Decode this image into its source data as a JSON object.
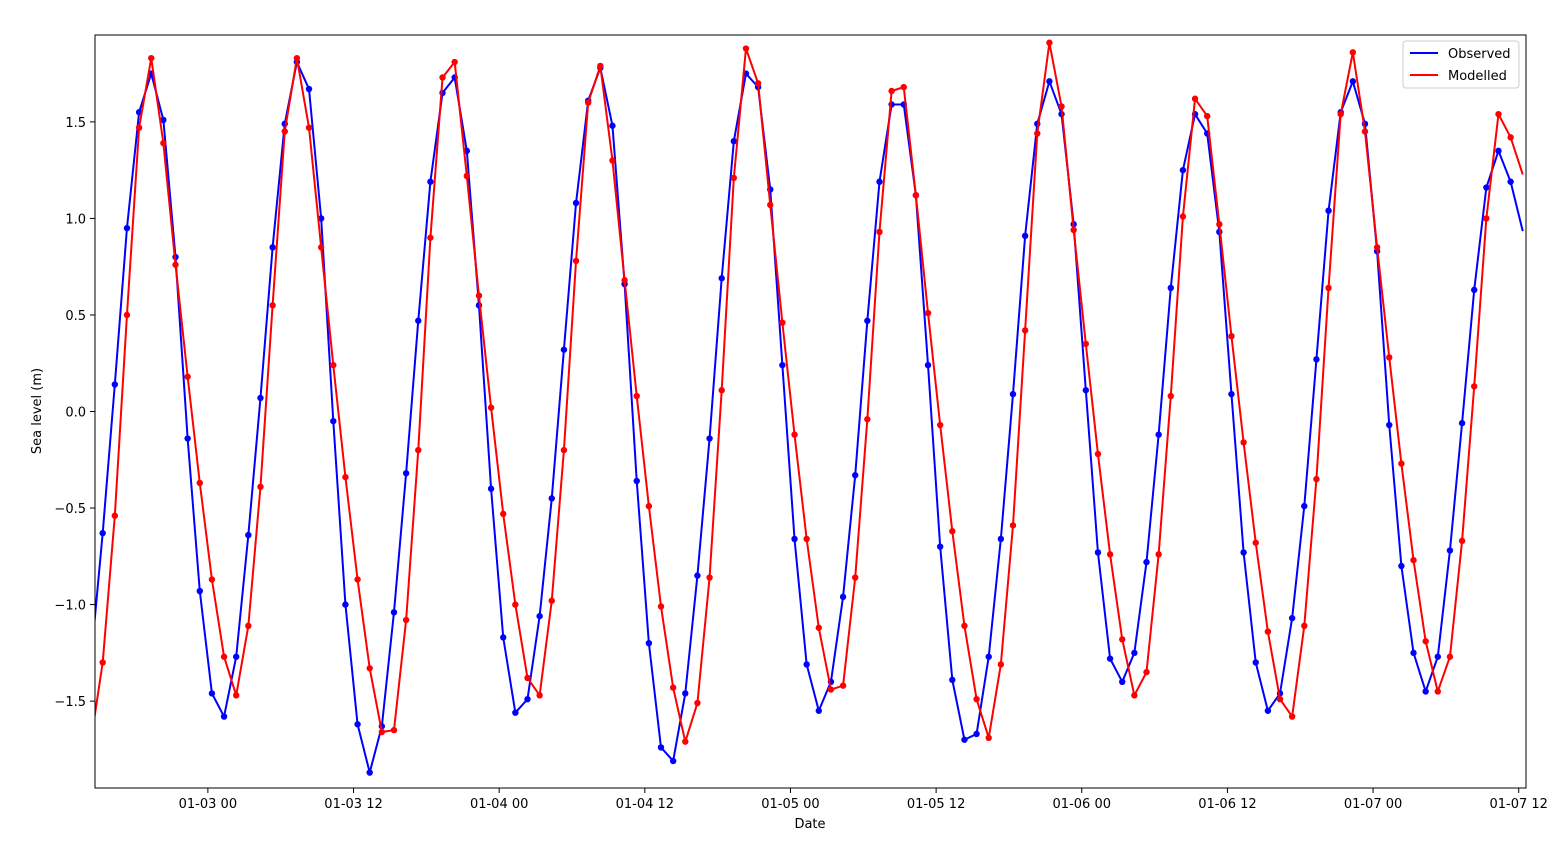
{
  "chart_data": {
    "type": "line",
    "title": "",
    "xlabel": "Date",
    "ylabel": "Sea level (m)",
    "x_start": "01-02 14:20",
    "x_step_hours": 1,
    "xlim_hours_from_jan3": [
      -9.3,
      108.6
    ],
    "ylim": [
      -1.95,
      1.95
    ],
    "x_ticks": [
      {
        "label": "01-03 00",
        "hour": 0
      },
      {
        "label": "01-03 12",
        "hour": 12
      },
      {
        "label": "01-04 00",
        "hour": 24
      },
      {
        "label": "01-04 12",
        "hour": 36
      },
      {
        "label": "01-05 00",
        "hour": 48
      },
      {
        "label": "01-05 12",
        "hour": 60
      },
      {
        "label": "01-06 00",
        "hour": 72
      },
      {
        "label": "01-06 12",
        "hour": 84
      },
      {
        "label": "01-07 00",
        "hour": 96
      },
      {
        "label": "01-07 12",
        "hour": 108
      }
    ],
    "y_ticks": [
      {
        "label": "−1.5",
        "value": -1.5
      },
      {
        "label": "−1.0",
        "value": -1.0
      },
      {
        "label": "−0.5",
        "value": -0.5
      },
      {
        "label": "0.0",
        "value": 0.0
      },
      {
        "label": "0.5",
        "value": 0.5
      },
      {
        "label": "1.0",
        "value": 1.0
      },
      {
        "label": "1.5",
        "value": 1.5
      }
    ],
    "legend_position": "top-right",
    "grid": false,
    "series": [
      {
        "name": "Observed",
        "color": "#0000ff",
        "values": [
          -1.31,
          -0.63,
          0.14,
          0.95,
          1.55,
          1.75,
          1.51,
          0.8,
          -0.14,
          -0.93,
          -1.46,
          -1.58,
          -1.27,
          -0.64,
          0.07,
          0.85,
          1.49,
          1.81,
          1.67,
          1.0,
          -0.05,
          -1.0,
          -1.62,
          -1.87,
          -1.63,
          -1.04,
          -0.32,
          0.47,
          1.19,
          1.65,
          1.73,
          1.35,
          0.55,
          -0.4,
          -1.17,
          -1.56,
          -1.49,
          -1.06,
          -0.45,
          0.32,
          1.08,
          1.61,
          1.78,
          1.48,
          0.66,
          -0.36,
          -1.2,
          -1.74,
          -1.81,
          -1.46,
          -0.85,
          -0.14,
          0.69,
          1.4,
          1.75,
          1.68,
          1.15,
          0.24,
          -0.66,
          -1.31,
          -1.55,
          -1.4,
          -0.96,
          -0.33,
          0.47,
          1.19,
          1.59,
          1.59,
          1.12,
          0.24,
          -0.7,
          -1.39,
          -1.7,
          -1.67,
          -1.27,
          -0.66,
          0.09,
          0.91,
          1.49,
          1.71,
          1.54,
          0.97,
          0.11,
          -0.73,
          -1.28,
          -1.4,
          -1.25,
          -0.78,
          -0.12,
          0.64,
          1.25,
          1.54,
          1.44,
          0.93,
          0.09,
          -0.73,
          -1.3,
          -1.55,
          -1.46,
          -1.07,
          -0.49,
          0.27,
          1.04,
          1.55,
          1.71,
          1.49,
          0.83,
          -0.07,
          -0.8,
          -1.25,
          -1.45,
          -1.27,
          -0.72,
          -0.06,
          0.63,
          1.16,
          1.35,
          1.19
        ]
      },
      {
        "name": "Modelled",
        "color": "#ff0000",
        "values": [
          -1.72,
          -1.3,
          -0.54,
          0.5,
          1.47,
          1.83,
          1.39,
          0.76,
          0.18,
          -0.37,
          -0.87,
          -1.27,
          -1.47,
          -1.11,
          -0.39,
          0.55,
          1.45,
          1.83,
          1.47,
          0.85,
          0.24,
          -0.34,
          -0.87,
          -1.33,
          -1.66,
          -1.65,
          -1.08,
          -0.2,
          0.9,
          1.73,
          1.81,
          1.22,
          0.6,
          0.02,
          -0.53,
          -1.0,
          -1.38,
          -1.47,
          -0.98,
          -0.2,
          0.78,
          1.6,
          1.79,
          1.3,
          0.68,
          0.08,
          -0.49,
          -1.01,
          -1.43,
          -1.71,
          -1.51,
          -0.86,
          0.11,
          1.21,
          1.88,
          1.7,
          1.07,
          0.46,
          -0.12,
          -0.66,
          -1.12,
          -1.44,
          -1.42,
          -0.86,
          -0.04,
          0.93,
          1.66,
          1.68,
          1.12,
          0.51,
          -0.07,
          -0.62,
          -1.11,
          -1.49,
          -1.69,
          -1.31,
          -0.59,
          0.42,
          1.44,
          1.91,
          1.58,
          0.94,
          0.35,
          -0.22,
          -0.74,
          -1.18,
          -1.47,
          -1.35,
          -0.74,
          0.08,
          1.01,
          1.62,
          1.53,
          0.97,
          0.39,
          -0.16,
          -0.68,
          -1.14,
          -1.49,
          -1.58,
          -1.11,
          -0.35,
          0.64,
          1.54,
          1.86,
          1.45,
          0.85,
          0.28,
          -0.27,
          -0.77,
          -1.19,
          -1.45,
          -1.27,
          -0.67,
          0.13,
          1.0,
          1.54,
          1.42
        ]
      }
    ]
  }
}
